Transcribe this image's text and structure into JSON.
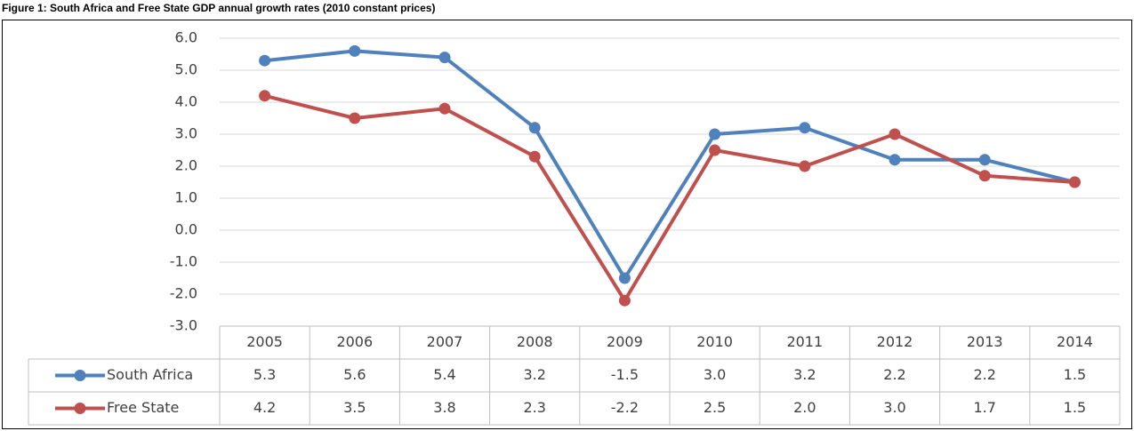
{
  "chart_data": {
    "type": "line",
    "title": "Figure 1: South Africa and Free State GDP annual growth rates (2010 constant prices)",
    "categories": [
      "2005",
      "2006",
      "2007",
      "2008",
      "2009",
      "2010",
      "2011",
      "2012",
      "2013",
      "2014"
    ],
    "series": [
      {
        "name": "South Africa",
        "color": "#4f81bd",
        "values": [
          5.3,
          5.6,
          5.4,
          3.2,
          -1.5,
          3.0,
          3.2,
          2.2,
          2.2,
          1.5
        ],
        "value_labels": [
          "5.3",
          "5.6",
          "5.4",
          "3.2",
          "-1.5",
          "3.0",
          "3.2",
          "2.2",
          "2.2",
          "1.5"
        ]
      },
      {
        "name": "Free State",
        "color": "#c0504d",
        "values": [
          4.2,
          3.5,
          3.8,
          2.3,
          -2.2,
          2.5,
          2.0,
          3.0,
          1.7,
          1.5
        ],
        "value_labels": [
          "4.2",
          "3.5",
          "3.8",
          "2.3",
          "-2.2",
          "2.5",
          "2.0",
          "3.0",
          "1.7",
          "1.5"
        ]
      }
    ],
    "ylim": [
      -3,
      6
    ],
    "yticks": [
      {
        "value": -3,
        "label": "-3.0"
      },
      {
        "value": -2,
        "label": "-2.0"
      },
      {
        "value": -1,
        "label": "-1.0"
      },
      {
        "value": 0,
        "label": "0.0"
      },
      {
        "value": 1,
        "label": "1.0"
      },
      {
        "value": 2,
        "label": "2.0"
      },
      {
        "value": 3,
        "label": "3.0"
      },
      {
        "value": 4,
        "label": "4.0"
      },
      {
        "value": 5,
        "label": "5.0"
      },
      {
        "value": 6,
        "label": "6.0"
      }
    ],
    "grid": true
  }
}
